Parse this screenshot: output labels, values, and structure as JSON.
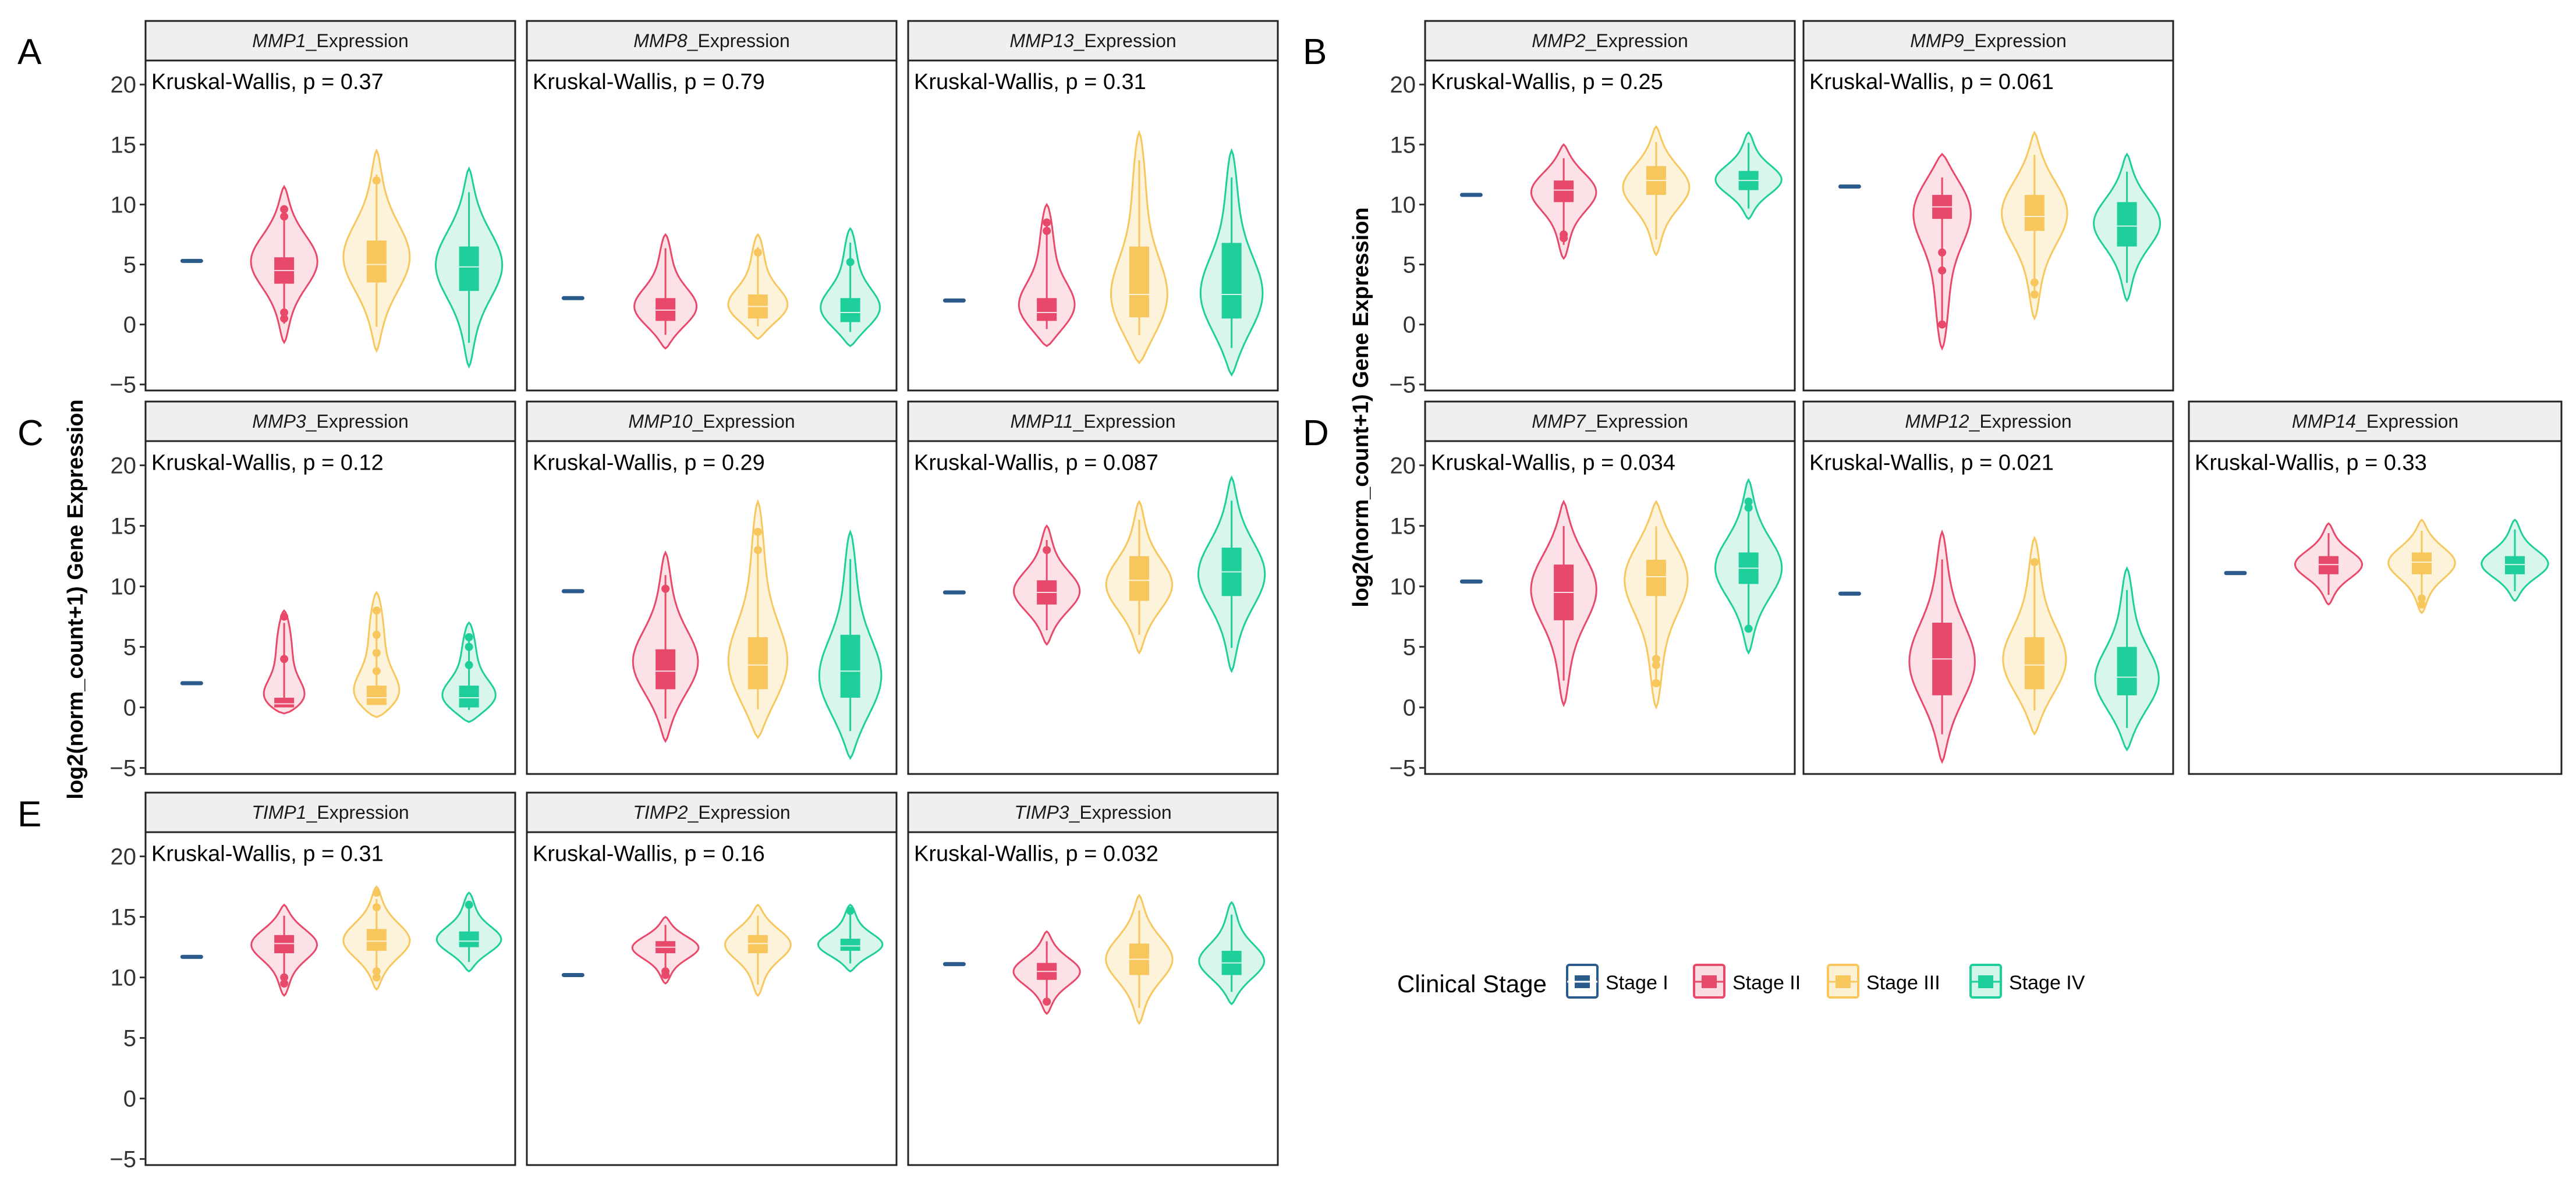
{
  "figure": {
    "y_axis_title": "log2(norm_count+1) Gene Expression",
    "panel_letters": [
      "A",
      "B",
      "C",
      "D",
      "E"
    ]
  },
  "legend": {
    "title": "Clinical Stage",
    "items": [
      {
        "label": "Stage I",
        "color": "#2b5b8a"
      },
      {
        "label": "Stage II",
        "color": "#e8496b"
      },
      {
        "label": "Stage III",
        "color": "#f7c75d"
      },
      {
        "label": "Stage IV",
        "color": "#1ecf9c"
      }
    ]
  },
  "chart_data": {
    "type": "violin",
    "x_categories": [
      "Stage I",
      "Stage II",
      "Stage III",
      "Stage IV"
    ],
    "y_ticks": [
      -5,
      0,
      5,
      10,
      15,
      20
    ],
    "ylim": [
      -5.5,
      22
    ],
    "test": "Kruskal-Wallis",
    "panels": [
      {
        "id": "A1",
        "letter": "A",
        "gene": "MMP1",
        "strip_suffix": "_Expression",
        "pval_label": "Kruskal-Wallis, p = 0.37",
        "y_axis": true,
        "stages": [
          {
            "stage": "Stage I",
            "median": 5.3
          },
          {
            "stage": "Stage II",
            "min": -1.5,
            "max": 11.5,
            "q1": 3.4,
            "q3": 5.6,
            "median": 4.5,
            "mode": 5.3,
            "outliers": [
              0.5,
              1.0,
              9.0,
              9.6
            ]
          },
          {
            "stage": "Stage III",
            "min": -2.2,
            "max": 14.5,
            "q1": 3.5,
            "q3": 7.0,
            "median": 5.0,
            "mode": 5.5,
            "outliers": [
              12.0
            ]
          },
          {
            "stage": "Stage IV",
            "min": -3.5,
            "max": 13.0,
            "q1": 2.8,
            "q3": 6.5,
            "median": 4.8,
            "mode": 5.0,
            "outliers": []
          }
        ]
      },
      {
        "id": "A2",
        "letter": "",
        "gene": "MMP8",
        "strip_suffix": "_Expression",
        "pval_label": "Kruskal-Wallis, p = 0.79",
        "y_axis": false,
        "stages": [
          {
            "stage": "Stage I",
            "median": 2.2
          },
          {
            "stage": "Stage II",
            "min": -2.0,
            "max": 7.5,
            "q1": 0.3,
            "q3": 2.2,
            "median": 1.2,
            "mode": 1.2,
            "outliers": []
          },
          {
            "stage": "Stage III",
            "min": -1.2,
            "max": 7.5,
            "q1": 0.5,
            "q3": 2.5,
            "median": 1.5,
            "mode": 1.3,
            "outliers": [
              6.0
            ]
          },
          {
            "stage": "Stage IV",
            "min": -1.8,
            "max": 8.0,
            "q1": 0.2,
            "q3": 2.2,
            "median": 1.0,
            "mode": 1.0,
            "outliers": [
              5.2
            ]
          }
        ]
      },
      {
        "id": "A3",
        "letter": "",
        "gene": "MMP13",
        "strip_suffix": "_Expression",
        "pval_label": "Kruskal-Wallis, p = 0.31",
        "y_axis": false,
        "stages": [
          {
            "stage": "Stage I",
            "median": 2.0
          },
          {
            "stage": "Stage II",
            "min": -1.8,
            "max": 10.0,
            "q1": 0.3,
            "q3": 2.2,
            "median": 1.0,
            "mode": 1.0,
            "outliers": [
              7.8,
              8.5
            ]
          },
          {
            "stage": "Stage III",
            "min": -3.2,
            "max": 16.0,
            "q1": 0.6,
            "q3": 6.5,
            "median": 2.5,
            "mode": 1.5,
            "outliers": []
          },
          {
            "stage": "Stage IV",
            "min": -4.2,
            "max": 14.5,
            "q1": 0.5,
            "q3": 6.8,
            "median": 2.5,
            "mode": 2.0,
            "outliers": []
          }
        ]
      },
      {
        "id": "B1",
        "letter": "B",
        "gene": "MMP2",
        "strip_suffix": "_Expression",
        "pval_label": "Kruskal-Wallis, p = 0.25",
        "y_axis": true,
        "stages": [
          {
            "stage": "Stage I",
            "median": 10.8
          },
          {
            "stage": "Stage II",
            "min": 5.5,
            "max": 15.0,
            "q1": 10.2,
            "q3": 12.0,
            "median": 11.2,
            "mode": 11.2,
            "outliers": [
              7.2,
              7.5
            ]
          },
          {
            "stage": "Stage III",
            "min": 5.8,
            "max": 16.5,
            "q1": 10.8,
            "q3": 13.2,
            "median": 12.0,
            "mode": 11.5,
            "outliers": []
          },
          {
            "stage": "Stage IV",
            "min": 8.8,
            "max": 16.0,
            "q1": 11.2,
            "q3": 12.8,
            "median": 12.0,
            "mode": 12.0,
            "outliers": []
          }
        ]
      },
      {
        "id": "B2",
        "letter": "",
        "gene": "MMP9",
        "strip_suffix": "_Expression",
        "pval_label": "Kruskal-Wallis, p = 0.061",
        "y_axis": false,
        "stages": [
          {
            "stage": "Stage I",
            "median": 11.5
          },
          {
            "stage": "Stage II",
            "min": -2.0,
            "max": 14.2,
            "q1": 8.8,
            "q3": 10.8,
            "median": 9.8,
            "mode": 10.0,
            "outliers": [
              0.0,
              4.5,
              6.0
            ]
          },
          {
            "stage": "Stage III",
            "min": 0.5,
            "max": 16.0,
            "q1": 7.8,
            "q3": 10.8,
            "median": 9.0,
            "mode": 9.5,
            "outliers": [
              2.5,
              3.5
            ]
          },
          {
            "stage": "Stage IV",
            "min": 2.0,
            "max": 14.2,
            "q1": 6.5,
            "q3": 10.2,
            "median": 8.2,
            "mode": 8.5,
            "outliers": []
          }
        ]
      },
      {
        "id": "C1",
        "letter": "C",
        "gene": "MMP3",
        "strip_suffix": "_Expression",
        "pval_label": "Kruskal-Wallis, p = 0.12",
        "y_axis": true,
        "stages": [
          {
            "stage": "Stage I",
            "median": 2.0
          },
          {
            "stage": "Stage II",
            "min": -0.5,
            "max": 8.0,
            "q1": 0.0,
            "q3": 0.8,
            "median": 0.3,
            "mode": 0.2,
            "outliers": [
              4.0,
              7.5
            ]
          },
          {
            "stage": "Stage III",
            "min": -0.8,
            "max": 9.5,
            "q1": 0.2,
            "q3": 1.8,
            "median": 0.8,
            "mode": 0.5,
            "outliers": [
              3.0,
              4.5,
              6.0,
              8.0
            ]
          },
          {
            "stage": "Stage IV",
            "min": -1.2,
            "max": 7.0,
            "q1": 0.0,
            "q3": 1.8,
            "median": 0.8,
            "mode": 0.5,
            "outliers": [
              3.5,
              5.0,
              5.8
            ]
          }
        ]
      },
      {
        "id": "C2",
        "letter": "",
        "gene": "MMP10",
        "strip_suffix": "_Expression",
        "pval_label": "Kruskal-Wallis, p = 0.29",
        "y_axis": false,
        "stages": [
          {
            "stage": "Stage I",
            "median": 9.6
          },
          {
            "stage": "Stage II",
            "min": -2.8,
            "max": 12.8,
            "q1": 1.5,
            "q3": 4.8,
            "median": 3.0,
            "mode": 3.5,
            "outliers": [
              9.8
            ]
          },
          {
            "stage": "Stage III",
            "min": -2.5,
            "max": 17.0,
            "q1": 1.5,
            "q3": 5.8,
            "median": 3.5,
            "mode": 3.0,
            "outliers": [
              13.0,
              14.5
            ]
          },
          {
            "stage": "Stage IV",
            "min": -4.2,
            "max": 14.5,
            "q1": 0.8,
            "q3": 6.0,
            "median": 3.0,
            "mode": 2.0,
            "outliers": []
          }
        ]
      },
      {
        "id": "C3",
        "letter": "",
        "gene": "MMP11",
        "strip_suffix": "_Expression",
        "pval_label": "Kruskal-Wallis, p = 0.087",
        "y_axis": false,
        "stages": [
          {
            "stage": "Stage I",
            "median": 9.5
          },
          {
            "stage": "Stage II",
            "min": 5.2,
            "max": 15.0,
            "q1": 8.5,
            "q3": 10.5,
            "median": 9.5,
            "mode": 9.5,
            "outliers": [
              13.0
            ]
          },
          {
            "stage": "Stage III",
            "min": 4.5,
            "max": 17.0,
            "q1": 8.8,
            "q3": 12.5,
            "median": 10.5,
            "mode": 10.0,
            "outliers": []
          },
          {
            "stage": "Stage IV",
            "min": 3.0,
            "max": 19.0,
            "q1": 9.2,
            "q3": 13.2,
            "median": 11.2,
            "mode": 11.0,
            "outliers": []
          }
        ]
      },
      {
        "id": "D1",
        "letter": "D",
        "gene": "MMP7",
        "strip_suffix": "_Expression",
        "pval_label": "Kruskal-Wallis, p = 0.034",
        "y_axis": true,
        "stages": [
          {
            "stage": "Stage I",
            "median": 10.4
          },
          {
            "stage": "Stage II",
            "min": 0.2,
            "max": 17.0,
            "q1": 7.2,
            "q3": 11.8,
            "median": 9.5,
            "mode": 10.0,
            "outliers": []
          },
          {
            "stage": "Stage III",
            "min": 0.0,
            "max": 17.0,
            "q1": 9.2,
            "q3": 12.2,
            "median": 10.8,
            "mode": 11.0,
            "outliers": [
              2.0,
              3.5,
              4.0
            ]
          },
          {
            "stage": "Stage IV",
            "min": 4.5,
            "max": 18.8,
            "q1": 10.2,
            "q3": 12.8,
            "median": 11.5,
            "mode": 11.5,
            "outliers": [
              6.5,
              16.5,
              17.0
            ]
          }
        ]
      },
      {
        "id": "D2",
        "letter": "",
        "gene": "MMP12",
        "strip_suffix": "_Expression",
        "pval_label": "Kruskal-Wallis, p = 0.021",
        "y_axis": false,
        "stages": [
          {
            "stage": "Stage I",
            "median": 9.4
          },
          {
            "stage": "Stage II",
            "min": -4.5,
            "max": 14.5,
            "q1": 1.0,
            "q3": 7.0,
            "median": 4.0,
            "mode": 3.5,
            "outliers": []
          },
          {
            "stage": "Stage III",
            "min": -2.2,
            "max": 14.0,
            "q1": 1.5,
            "q3": 5.8,
            "median": 3.5,
            "mode": 3.5,
            "outliers": [
              12.0
            ]
          },
          {
            "stage": "Stage IV",
            "min": -3.5,
            "max": 11.5,
            "q1": 1.0,
            "q3": 5.0,
            "median": 2.5,
            "mode": 2.0,
            "outliers": []
          }
        ]
      },
      {
        "id": "D3",
        "letter": "",
        "gene": "MMP14",
        "strip_suffix": "_Expression",
        "pval_label": "Kruskal-Wallis, p = 0.33",
        "y_axis": false,
        "stages": [
          {
            "stage": "Stage I",
            "median": 11.1
          },
          {
            "stage": "Stage II",
            "min": 8.5,
            "max": 15.2,
            "q1": 11.0,
            "q3": 12.5,
            "median": 11.8,
            "mode": 11.8,
            "outliers": []
          },
          {
            "stage": "Stage III",
            "min": 7.8,
            "max": 15.5,
            "q1": 11.0,
            "q3": 12.8,
            "median": 12.0,
            "mode": 12.0,
            "outliers": [
              8.5,
              9.0
            ]
          },
          {
            "stage": "Stage IV",
            "min": 8.8,
            "max": 15.5,
            "q1": 11.0,
            "q3": 12.5,
            "median": 11.8,
            "mode": 11.8,
            "outliers": []
          }
        ]
      },
      {
        "id": "E1",
        "letter": "E",
        "gene": "TIMP1",
        "strip_suffix": "_Expression",
        "pval_label": "Kruskal-Wallis, p = 0.31",
        "y_axis": true,
        "stages": [
          {
            "stage": "Stage I",
            "median": 11.7
          },
          {
            "stage": "Stage II",
            "min": 8.5,
            "max": 16.0,
            "q1": 12.0,
            "q3": 13.5,
            "median": 12.8,
            "mode": 12.8,
            "outliers": [
              9.5,
              10.0
            ]
          },
          {
            "stage": "Stage III",
            "min": 9.0,
            "max": 17.5,
            "q1": 12.2,
            "q3": 14.0,
            "median": 13.0,
            "mode": 13.0,
            "outliers": [
              10.0,
              10.5,
              15.8,
              17.0
            ]
          },
          {
            "stage": "Stage IV",
            "min": 10.5,
            "max": 17.0,
            "q1": 12.5,
            "q3": 13.8,
            "median": 13.0,
            "mode": 13.0,
            "outliers": [
              16.0
            ]
          }
        ]
      },
      {
        "id": "E2",
        "letter": "",
        "gene": "TIMP2",
        "strip_suffix": "_Expression",
        "pval_label": "Kruskal-Wallis, p = 0.16",
        "y_axis": false,
        "stages": [
          {
            "stage": "Stage I",
            "median": 10.2
          },
          {
            "stage": "Stage II",
            "min": 9.5,
            "max": 15.0,
            "q1": 12.0,
            "q3": 13.0,
            "median": 12.5,
            "mode": 12.5,
            "outliers": [
              10.2,
              10.5
            ]
          },
          {
            "stage": "Stage III",
            "min": 8.5,
            "max": 16.0,
            "q1": 12.0,
            "q3": 13.5,
            "median": 12.8,
            "mode": 12.8,
            "outliers": []
          },
          {
            "stage": "Stage IV",
            "min": 10.5,
            "max": 16.0,
            "q1": 12.2,
            "q3": 13.2,
            "median": 12.6,
            "mode": 12.6,
            "outliers": [
              15.5
            ]
          }
        ]
      },
      {
        "id": "E3",
        "letter": "",
        "gene": "TIMP3",
        "strip_suffix": "_Expression",
        "pval_label": "Kruskal-Wallis, p = 0.032",
        "y_axis": false,
        "stages": [
          {
            "stage": "Stage I",
            "median": 11.1
          },
          {
            "stage": "Stage II",
            "min": 7.0,
            "max": 13.8,
            "q1": 9.8,
            "q3": 11.2,
            "median": 10.5,
            "mode": 10.5,
            "outliers": [
              8.0
            ]
          },
          {
            "stage": "Stage III",
            "min": 6.2,
            "max": 16.8,
            "q1": 10.2,
            "q3": 12.8,
            "median": 11.5,
            "mode": 11.5,
            "outliers": []
          },
          {
            "stage": "Stage IV",
            "min": 7.8,
            "max": 16.2,
            "q1": 10.2,
            "q3": 12.2,
            "median": 11.2,
            "mode": 11.2,
            "outliers": []
          }
        ]
      }
    ]
  }
}
